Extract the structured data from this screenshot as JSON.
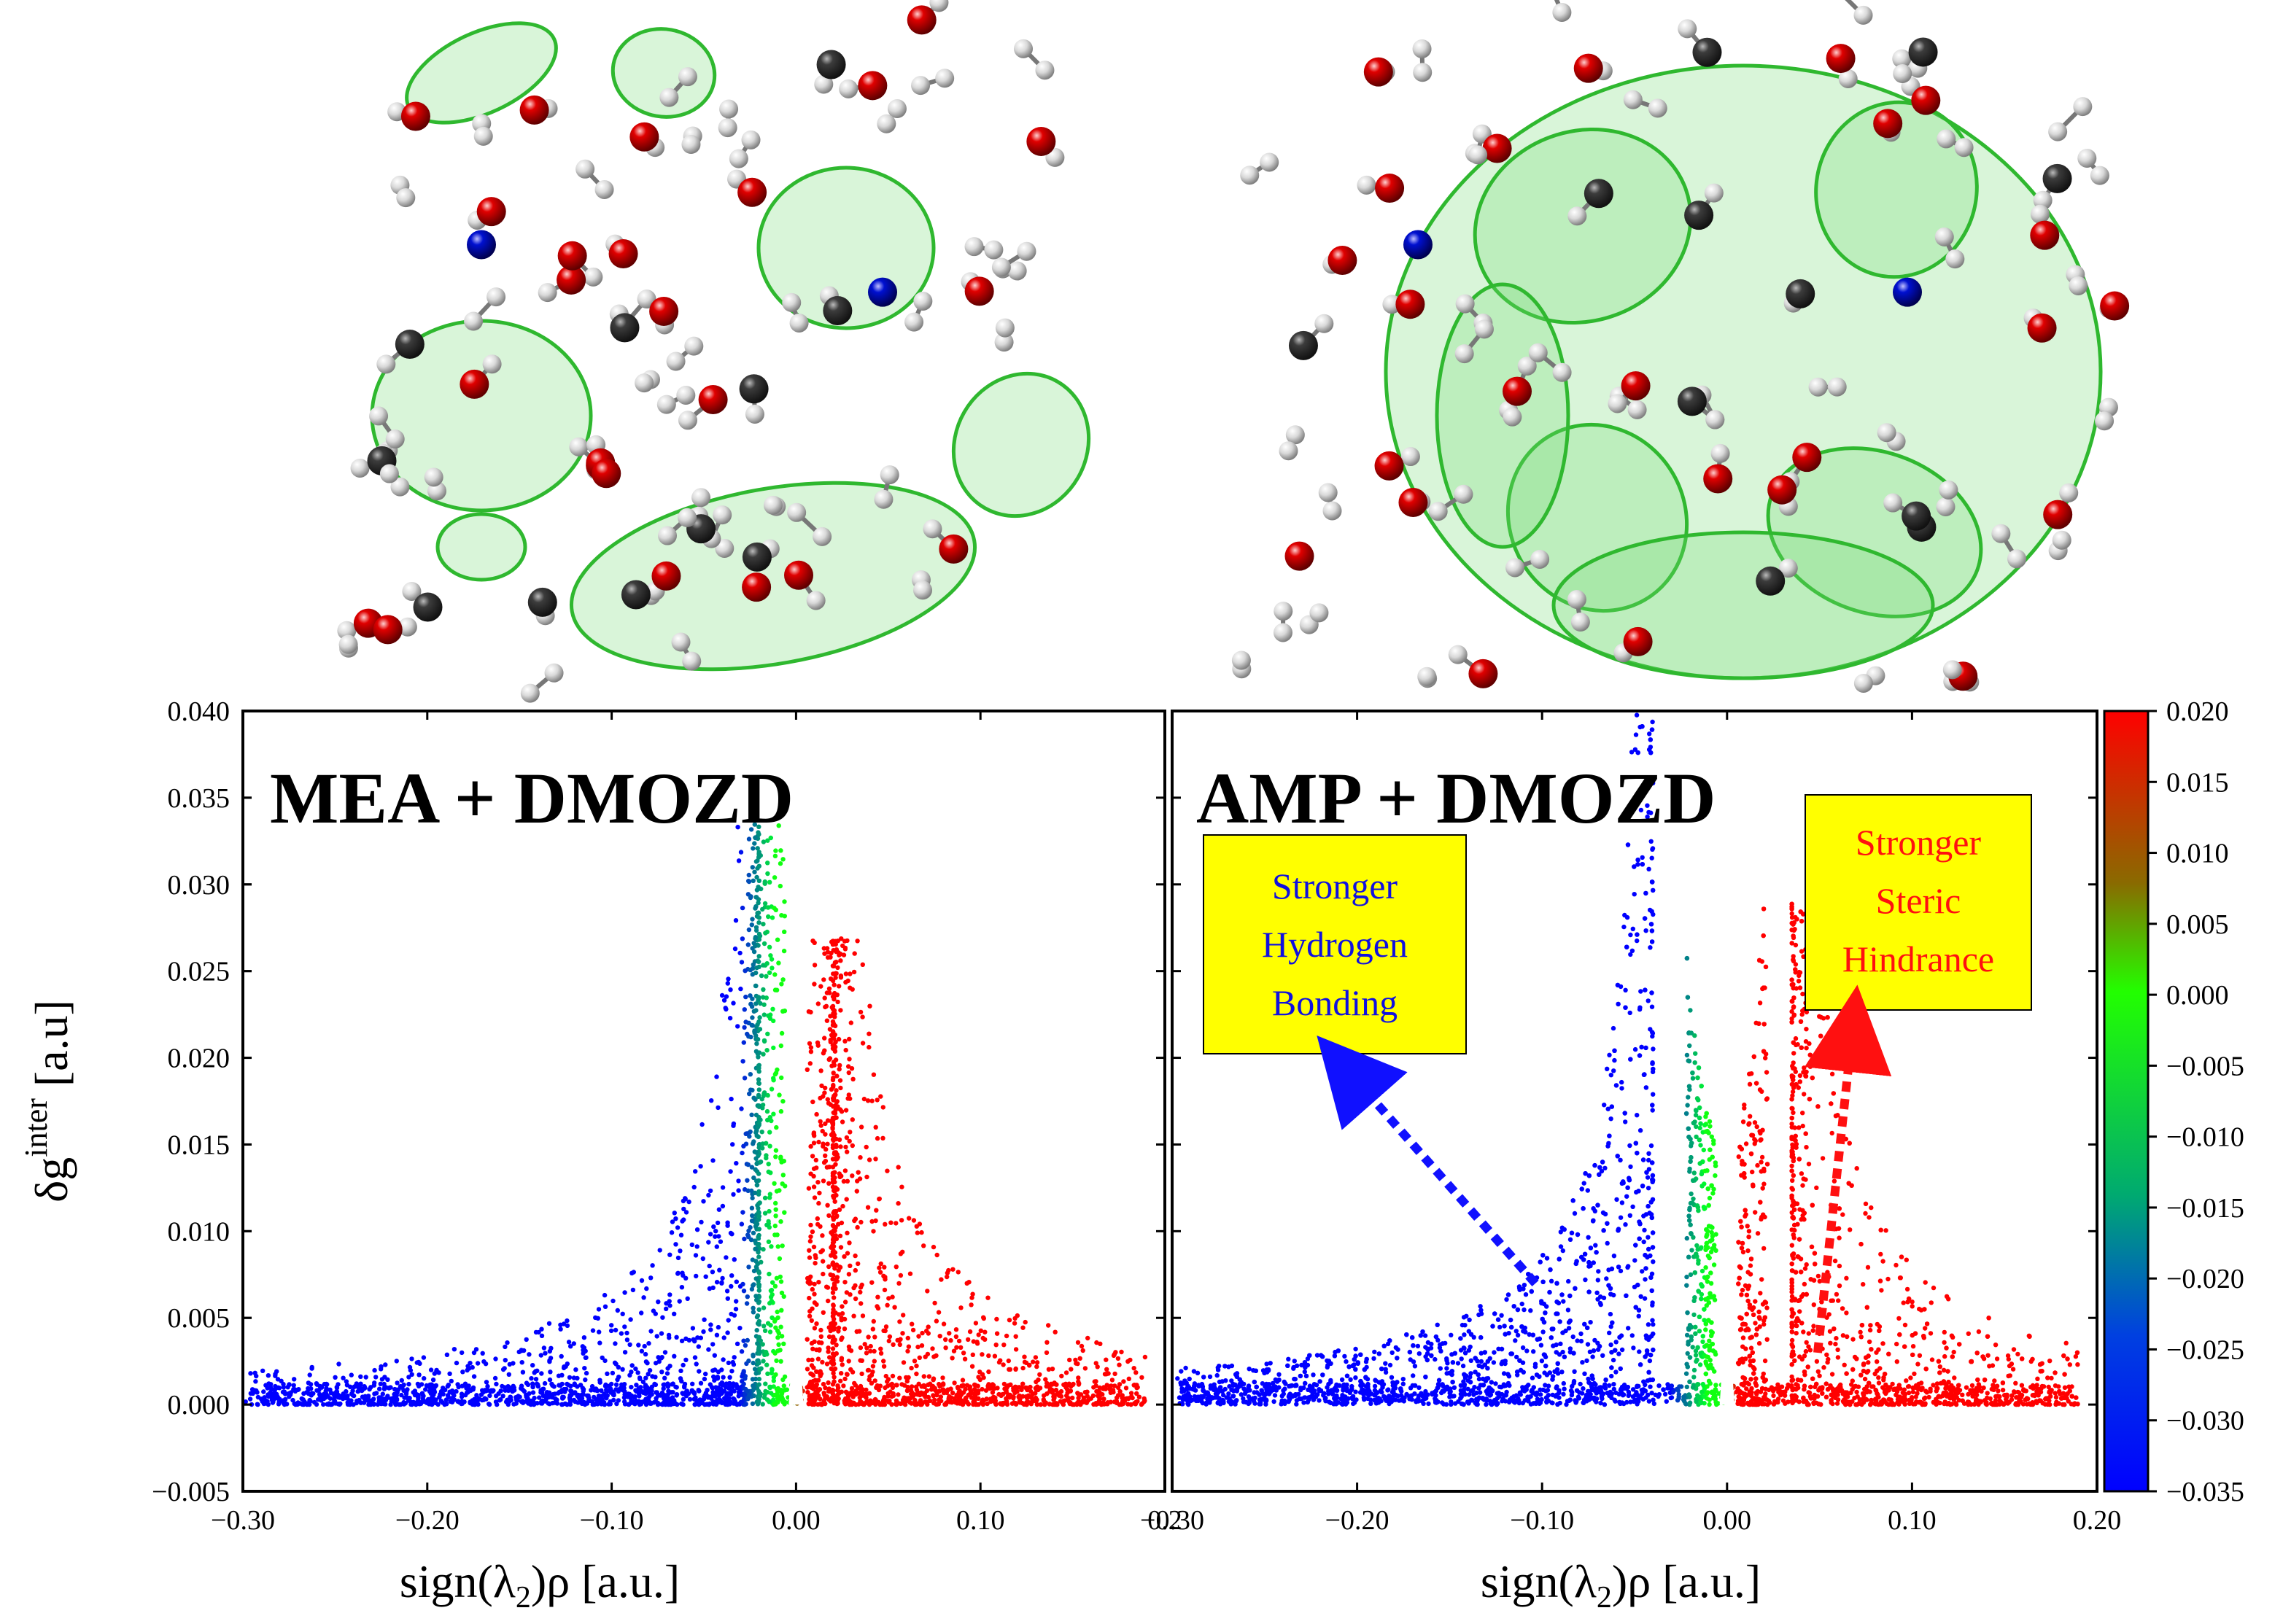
{
  "chart_data": [
    {
      "type": "scatter",
      "title": "MEA + DMOZD",
      "xlabel": "sign(λ2)ρ [a.u.]",
      "ylabel": "δg^inter [a.u]",
      "xlim": [
        -0.3,
        0.2
      ],
      "ylim": [
        -0.005,
        0.04
      ],
      "x_tick_labels": [
        "−0.30",
        "−0.20",
        "−0.10",
        "0.00",
        "0.10",
        "0.2"
      ],
      "y_tick_labels": [
        "−0.005",
        "0.000",
        "0.005",
        "0.010",
        "0.015",
        "0.020",
        "0.025",
        "0.030",
        "0.035",
        "0.040"
      ],
      "series_shape": {
        "left_wing": {
          "x_min": -0.3,
          "x_max": -0.005,
          "peak_x": -0.02,
          "peak_y": 0.0335
        },
        "right_wing": {
          "x_min": 0.005,
          "x_max": 0.19,
          "peak_x": 0.02,
          "peak_y": 0.027
        }
      },
      "color_by": "sign(λ2)ρ"
    },
    {
      "type": "scatter",
      "title": "AMP + DMOZD",
      "xlabel": "sign(λ2)ρ [a.u.]",
      "xlim": [
        -0.3,
        0.2
      ],
      "ylim": [
        -0.005,
        0.04
      ],
      "x_tick_labels": [
        "−0.30",
        "−0.20",
        "−0.10",
        "0.00",
        "0.10",
        "0.20"
      ],
      "series_shape": {
        "left_wing": {
          "x_min": -0.3,
          "x_max": -0.005,
          "peak_x": -0.04,
          "peak_y": 0.04
        },
        "right_wing": {
          "x_min": 0.005,
          "x_max": 0.19,
          "peak_x": 0.035,
          "peak_y": 0.029
        }
      },
      "annotations": [
        {
          "text": [
            "Stronger",
            "Hydrogen",
            "Bonding"
          ],
          "color": "#1010e0",
          "box": "#ffff00"
        },
        {
          "text": [
            "Stronger",
            "Steric",
            "Hindrance"
          ],
          "color": "#ff1010",
          "box": "#ffff00"
        }
      ],
      "color_by": "sign(λ2)ρ"
    }
  ],
  "colorbar": {
    "range": [
      -0.035,
      0.02
    ],
    "tick_labels": [
      "0.020",
      "0.015",
      "0.010",
      "0.005",
      "0.000",
      "−0.005",
      "−0.010",
      "−0.015",
      "−0.020",
      "−0.025",
      "−0.030",
      "−0.035"
    ],
    "colors": [
      "#ff0000",
      "#8a7a00",
      "#00ff00",
      "#008080",
      "#0000ff"
    ]
  },
  "images": [
    {
      "caption": "MEA + DMOZD NCI isosurface (molecular render)"
    },
    {
      "caption": "AMP + DMOZD NCI isosurface (molecular render)"
    }
  ],
  "colors": {
    "oxygen": "#e00000",
    "hydrogen": "#e8e8e8",
    "carbon": "#3a3a3a",
    "nitrogen": "#0000d0",
    "isosurface": "#44c844",
    "hb": "#0000ff",
    "steric": "#ff0000"
  }
}
